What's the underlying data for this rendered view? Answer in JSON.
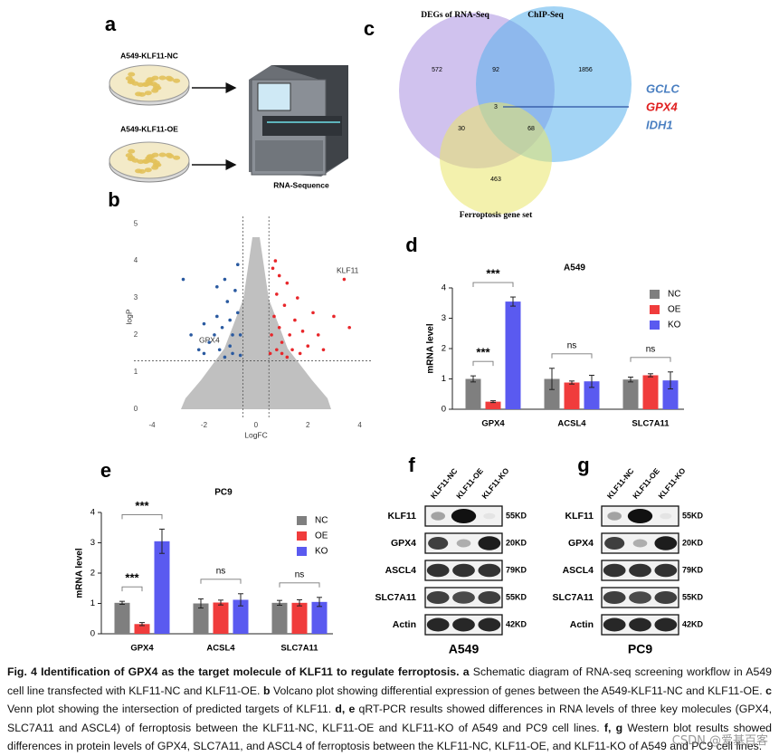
{
  "panel_a": {
    "letter": "a",
    "dish_nc": "A549-KLF11-NC",
    "dish_oe": "A549-KLF11-OE",
    "machine": "RNA-Sequence"
  },
  "volcano": {
    "letter": "b",
    "xlabel": "LogFC",
    "ylabel": "logP",
    "xlim": [
      -4.7,
      4.5
    ],
    "ylim": [
      -0.25,
      5.2
    ],
    "xticks": [
      -4,
      -2,
      0,
      2,
      4
    ],
    "yticks": [
      0,
      1,
      2,
      3,
      4,
      5
    ],
    "thresholds": {
      "logfc": [
        -0.5,
        0.5
      ],
      "logp": 1.3
    },
    "labels": [
      {
        "text": "KLF11"
      },
      {
        "text": "GPX4"
      }
    ],
    "groups": [
      {
        "color": "#e8262a",
        "points": [
          [
            0.6,
            2.0
          ],
          [
            0.7,
            2.5
          ],
          [
            0.8,
            3.1
          ],
          [
            0.9,
            2.2
          ],
          [
            1.0,
            1.8
          ],
          [
            1.1,
            2.8
          ],
          [
            1.2,
            3.4
          ],
          [
            1.3,
            2.0
          ],
          [
            1.4,
            1.6
          ],
          [
            1.5,
            2.4
          ],
          [
            1.6,
            3.0
          ],
          [
            1.8,
            2.1
          ],
          [
            2.0,
            1.7
          ],
          [
            2.2,
            2.6
          ],
          [
            0.65,
            3.8
          ],
          [
            0.75,
            4.0
          ],
          [
            0.9,
            3.6
          ],
          [
            1.0,
            1.5
          ],
          [
            1.7,
            1.5
          ],
          [
            2.4,
            2.0
          ],
          [
            3.0,
            2.5
          ],
          [
            3.4,
            3.5
          ],
          [
            3.6,
            2.2
          ],
          [
            0.55,
            1.5
          ],
          [
            1.2,
            1.4
          ],
          [
            0.8,
            1.6
          ],
          [
            2.6,
            1.6
          ]
        ]
      },
      {
        "color": "#2a5aa0",
        "points": [
          [
            -0.6,
            2.0
          ],
          [
            -0.7,
            2.6
          ],
          [
            -0.8,
            3.2
          ],
          [
            -0.9,
            2.0
          ],
          [
            -1.0,
            1.7
          ],
          [
            -1.1,
            2.9
          ],
          [
            -1.2,
            3.5
          ],
          [
            -1.3,
            2.2
          ],
          [
            -1.4,
            1.6
          ],
          [
            -1.5,
            2.5
          ],
          [
            -1.6,
            2.0
          ],
          [
            -1.8,
            1.8
          ],
          [
            -2.0,
            2.3
          ],
          [
            -2.2,
            1.6
          ],
          [
            -0.7,
            3.9
          ],
          [
            -0.9,
            1.5
          ],
          [
            -1.0,
            2.4
          ],
          [
            -1.2,
            1.4
          ],
          [
            -2.5,
            2.0
          ],
          [
            -2.8,
            3.5
          ],
          [
            -1.5,
            3.3
          ],
          [
            -0.6,
            1.45
          ],
          [
            -2.0,
            1.5
          ]
        ]
      }
    ]
  },
  "venn": {
    "letter": "c",
    "sets": [
      {
        "label": "DEGs of RNA-Seq",
        "color": "#a98fe0"
      },
      {
        "label": "ChIP-Seq",
        "color": "#58b1ec"
      },
      {
        "label": "Ferroptosis gene set",
        "color": "#e9e56a"
      }
    ],
    "regions": [
      "572",
      "92",
      "1856",
      "3",
      "30",
      "68",
      "463"
    ],
    "genes": [
      {
        "text": "GCLC",
        "color": "#4a7fc1"
      },
      {
        "text": "GPX4",
        "color": "#e02020"
      },
      {
        "text": "IDH1",
        "color": "#4a7fc1"
      }
    ]
  },
  "chart_data": [
    {
      "type": "bar",
      "letter": "d",
      "title": "A549",
      "ylabel": "mRNA level",
      "categories": [
        "GPX4",
        "ACSL4",
        "SLC7A11"
      ],
      "ylim": [
        0,
        4
      ],
      "yticks": [
        0,
        1,
        2,
        3,
        4
      ],
      "series": [
        {
          "name": "NC",
          "color": "#7f7f7f",
          "values": [
            1.0,
            1.0,
            0.98
          ],
          "errors": [
            0.1,
            0.35,
            0.08
          ]
        },
        {
          "name": "OE",
          "color": "#f03c3c",
          "values": [
            0.25,
            0.88,
            1.12
          ],
          "errors": [
            0.03,
            0.05,
            0.05
          ]
        },
        {
          "name": "KO",
          "color": "#5a5af0",
          "values": [
            3.55,
            0.92,
            0.95
          ],
          "errors": [
            0.15,
            0.2,
            0.28
          ]
        }
      ],
      "significance": [
        {
          "label": "***",
          "category": "GPX4",
          "from": "NC",
          "to": "KO"
        },
        {
          "label": "***",
          "category": "GPX4",
          "from": "NC",
          "to": "OE"
        },
        {
          "label": "ns",
          "category": "ACSL4",
          "from": "NC",
          "to": "KO"
        },
        {
          "label": "ns",
          "category": "SLC7A11",
          "from": "NC",
          "to": "KO"
        }
      ]
    },
    {
      "type": "bar",
      "letter": "e",
      "title": "PC9",
      "ylabel": "mRNA level",
      "categories": [
        "GPX4",
        "ACSL4",
        "SLC7A11"
      ],
      "ylim": [
        0,
        4
      ],
      "yticks": [
        0,
        1,
        2,
        3,
        4
      ],
      "series": [
        {
          "name": "NC",
          "color": "#7f7f7f",
          "values": [
            1.02,
            1.0,
            1.02
          ],
          "errors": [
            0.05,
            0.15,
            0.08
          ]
        },
        {
          "name": "OE",
          "color": "#f03c3c",
          "values": [
            0.32,
            1.03,
            1.02
          ],
          "errors": [
            0.05,
            0.08,
            0.1
          ]
        },
        {
          "name": "KO",
          "color": "#5a5af0",
          "values": [
            3.05,
            1.12,
            1.05
          ],
          "errors": [
            0.4,
            0.2,
            0.15
          ]
        }
      ],
      "significance": [
        {
          "label": "***",
          "category": "GPX4",
          "from": "NC",
          "to": "KO"
        },
        {
          "label": "***",
          "category": "GPX4",
          "from": "NC",
          "to": "OE"
        },
        {
          "label": "ns",
          "category": "ACSL4",
          "from": "NC",
          "to": "KO"
        },
        {
          "label": "ns",
          "category": "SLC7A11",
          "from": "NC",
          "to": "KO"
        }
      ]
    }
  ],
  "blots": [
    {
      "letter": "f",
      "cell_line": "A549",
      "lanes": [
        "KLF11-NC",
        "KLF11-OE",
        "KLF11-KO"
      ],
      "rows": [
        {
          "protein": "KLF11",
          "size": "55KD"
        },
        {
          "protein": "GPX4",
          "size": "20KD"
        },
        {
          "protein": "ASCL4",
          "size": "79KD"
        },
        {
          "protein": "SLC7A11",
          "size": "55KD"
        },
        {
          "protein": "Actin",
          "size": "42KD"
        }
      ]
    },
    {
      "letter": "g",
      "cell_line": "PC9",
      "lanes": [
        "KLF11-NC",
        "KLF11-OE",
        "KLF11-KO"
      ],
      "rows": [
        {
          "protein": "KLF11",
          "size": "55KD"
        },
        {
          "protein": "GPX4",
          "size": "20KD"
        },
        {
          "protein": "ASCL4",
          "size": "79KD"
        },
        {
          "protein": "SLC7A11",
          "size": "55KD"
        },
        {
          "protein": "Actin",
          "size": "42KD"
        }
      ]
    }
  ],
  "caption": [
    {
      "text": "Fig. 4 Identification of GPX4 as the target molecule of KLF11 to regulate ferroptosis. a",
      "bold": true
    },
    {
      "text": " Schematic diagram of RNA-seq screening workflow in A549 cell line transfected with KLF11-NC and KLF11-OE. ",
      "bold": false
    },
    {
      "text": "b",
      "bold": true
    },
    {
      "text": " Volcano plot showing differential expression of genes between the A549-KLF11-NC and KLF11-OE. ",
      "bold": false
    },
    {
      "text": "c",
      "bold": true
    },
    {
      "text": " Venn plot showing the intersection of predicted targets of KLF11. ",
      "bold": false
    },
    {
      "text": "d, e",
      "bold": true
    },
    {
      "text": " qRT-PCR results showed differences in RNA levels of three key molecules (GPX4, SLC7A11 and ASCL4) of ferroptosis between the KLF11-NC, KLF11-OE and KLF11-KO of A549 and PC9 cell lines. ",
      "bold": false
    },
    {
      "text": "f, g",
      "bold": true
    },
    {
      "text": " Western blot results showed differences in protein levels of GPX4, SLC7A11, and ASCL4 of ferroptosis between the KLF11-NC, KLF11-OE, and KLF11-KO of A549 and PC9 cell lines.",
      "bold": false
    }
  ],
  "watermark": "CSDN @爱基百客"
}
